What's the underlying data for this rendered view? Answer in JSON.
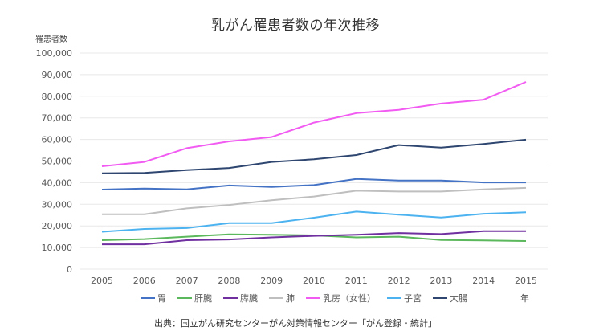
{
  "chart_data": {
    "type": "line",
    "title": "乳がん罹患者数の年次推移",
    "ylabel": "罹患者数",
    "xlabel": "年",
    "ylim": [
      0,
      100000
    ],
    "yticks": [
      "0",
      "10,000",
      "20,000",
      "30,000",
      "40,000",
      "50,000",
      "60,000",
      "70,000",
      "80,000",
      "90,000",
      "100,000"
    ],
    "ytick_values": [
      0,
      10000,
      20000,
      30000,
      40000,
      50000,
      60000,
      70000,
      80000,
      90000,
      100000
    ],
    "grid": true,
    "legend_position": "bottom",
    "x": [
      "2005",
      "2006",
      "2007",
      "2008",
      "2009",
      "2010",
      "2011",
      "2012",
      "2013",
      "2014",
      "2015"
    ],
    "series": [
      {
        "name": "胃",
        "color": "#4472C4",
        "values": [
          36800,
          37300,
          36900,
          38700,
          38000,
          38900,
          41700,
          41000,
          41000,
          40100,
          40100
        ]
      },
      {
        "name": "肝臓",
        "color": "#5CB85C",
        "values": [
          13400,
          13900,
          15000,
          16100,
          15900,
          15600,
          14700,
          15000,
          13500,
          13300,
          13000
        ]
      },
      {
        "name": "膵臓",
        "color": "#7030A0",
        "values": [
          11500,
          11500,
          13400,
          13700,
          14700,
          15400,
          15900,
          16700,
          16200,
          17600,
          17600
        ]
      },
      {
        "name": "肺",
        "color": "#BFBFBF",
        "values": [
          25400,
          25400,
          28100,
          29700,
          31900,
          33600,
          36300,
          35900,
          35900,
          36900,
          37600
        ]
      },
      {
        "name": "乳房（女性）",
        "color": "#F25BF2",
        "values": [
          47600,
          49600,
          56000,
          59100,
          61100,
          67800,
          72200,
          73700,
          76600,
          78400,
          86600
        ]
      },
      {
        "name": "子宮",
        "color": "#4DB3F0",
        "values": [
          17300,
          18600,
          19000,
          21300,
          21300,
          23800,
          26600,
          25200,
          23900,
          25600,
          26300
        ]
      },
      {
        "name": "大腸",
        "color": "#2E4670",
        "values": [
          44300,
          44500,
          45800,
          46800,
          49600,
          50800,
          52800,
          57400,
          56200,
          57900,
          59900
        ]
      }
    ],
    "source": "出典：国立がん研究センターがん対策情報センター「がん登録・統計」"
  }
}
